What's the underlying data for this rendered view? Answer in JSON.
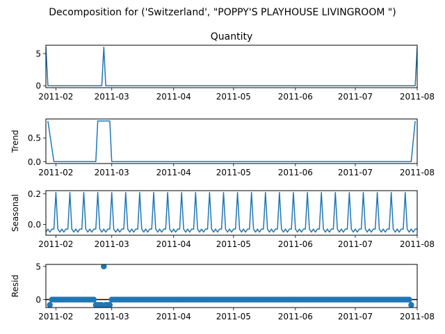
{
  "figure": {
    "suptitle": "Decomposition for ('Switzerland', \"POPPY'S PLAYHOUSE LIVINGROOM \")"
  },
  "colors": {
    "series": "#1f77b4",
    "axis": "#000000",
    "background": "#ffffff"
  },
  "chart_data": [
    {
      "type": "line",
      "title": "Quantity",
      "ylabel": "",
      "xlim": [
        "2011-01-27",
        "2011-08-01"
      ],
      "ylim": [
        -0.3,
        6.3
      ],
      "yticks": [
        0,
        5
      ],
      "xticks": [
        "2011-02",
        "2011-03",
        "2011-04",
        "2011-05",
        "2011-06",
        "2011-07",
        "2011-08"
      ],
      "grid": false,
      "series": [
        {
          "x": [
            "2011-01-27",
            "2011-01-28",
            "2011-02-24",
            "2011-02-25",
            "2011-02-26",
            "2011-07-31",
            "2011-08-01"
          ],
          "values": [
            6,
            0,
            0,
            6,
            0,
            0,
            6
          ]
        }
      ]
    },
    {
      "type": "line",
      "title": "",
      "ylabel": "Trend",
      "xlim": [
        "2011-01-27",
        "2011-08-01"
      ],
      "ylim": [
        -0.04,
        0.9
      ],
      "yticks": [
        0.0,
        0.5
      ],
      "xticks": [
        "2011-02",
        "2011-03",
        "2011-04",
        "2011-05",
        "2011-06",
        "2011-07",
        "2011-08"
      ],
      "grid": false,
      "series": [
        {
          "x": [
            "2011-01-28",
            "2011-01-31",
            "2011-02-21",
            "2011-02-22",
            "2011-02-28",
            "2011-03-01",
            "2011-07-29",
            "2011-07-31"
          ],
          "values": [
            0.857,
            0.0,
            0.0,
            0.857,
            0.857,
            0.0,
            0.0,
            0.857
          ]
        }
      ]
    },
    {
      "type": "line",
      "title": "",
      "ylabel": "Seasonal",
      "xlim": [
        "2011-01-27",
        "2011-08-01"
      ],
      "ylim": [
        -0.07,
        0.22
      ],
      "yticks": [
        0.0,
        0.2
      ],
      "xticks": [
        "2011-02",
        "2011-03",
        "2011-04",
        "2011-05",
        "2011-06",
        "2011-07",
        "2011-08"
      ],
      "grid": false,
      "period_days": 7,
      "weekly_pattern": [
        0.208,
        -0.03,
        -0.05,
        -0.03,
        -0.05,
        -0.03,
        -0.03
      ],
      "first_peak": "2011-02-01",
      "series": [
        {
          "x_start": "2011-01-27",
          "x_end": "2011-08-01"
        }
      ]
    },
    {
      "type": "scatter",
      "title": "",
      "ylabel": "Resid",
      "xlim": [
        "2011-01-27",
        "2011-08-01"
      ],
      "ylim": [
        -1.2,
        5.3
      ],
      "yticks": [
        0,
        5
      ],
      "xticks": [
        "2011-02",
        "2011-03",
        "2011-04",
        "2011-05",
        "2011-06",
        "2011-07",
        "2011-08"
      ],
      "grid": false,
      "zero_line": true,
      "series": [
        {
          "x_start": "2011-01-29",
          "x_end": "2011-07-29",
          "default_value": 0,
          "outliers": [
            {
              "x": "2011-01-29",
              "value": -0.8
            },
            {
              "x": "2011-02-21",
              "value": -0.8
            },
            {
              "x": "2011-02-22",
              "value": -0.8
            },
            {
              "x": "2011-02-23",
              "value": -0.8
            },
            {
              "x": "2011-02-24",
              "value": -0.8
            },
            {
              "x": "2011-02-25",
              "value": 5.0
            },
            {
              "x": "2011-02-26",
              "value": -0.8
            },
            {
              "x": "2011-02-27",
              "value": -0.8
            },
            {
              "x": "2011-02-28",
              "value": -0.8
            },
            {
              "x": "2011-07-29",
              "value": -0.8
            }
          ]
        }
      ]
    }
  ]
}
